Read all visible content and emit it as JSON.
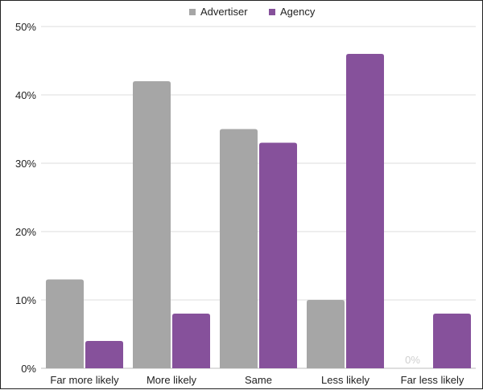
{
  "chart_data": {
    "type": "bar",
    "categories": [
      "Far more likely",
      "More likely",
      "Same",
      "Less likely",
      "Far less likely"
    ],
    "series": [
      {
        "name": "Advertiser",
        "values": [
          13,
          42,
          35,
          10,
          0
        ],
        "color": "#a6a6a6"
      },
      {
        "name": "Agency",
        "values": [
          4,
          8,
          33,
          46,
          8
        ],
        "color": "#86519b"
      }
    ],
    "y_ticks": [
      "0%",
      "10%",
      "20%",
      "30%",
      "40%",
      "50%"
    ],
    "ylim": [
      0,
      50
    ],
    "grid": true,
    "legend_position": "top-center",
    "annotations": [
      {
        "category": "Far less likely",
        "series": "Advertiser",
        "text": "0%"
      }
    ]
  }
}
